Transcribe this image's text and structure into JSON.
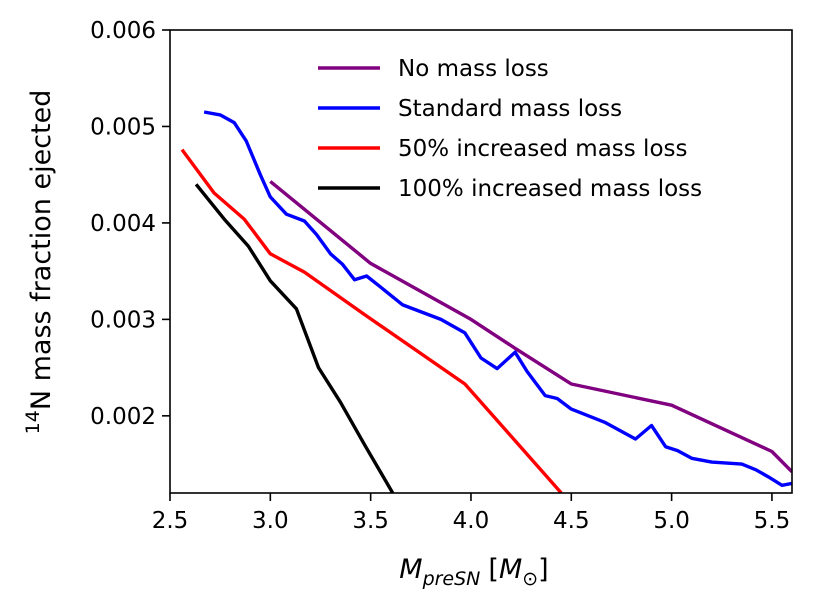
{
  "chart_data": {
    "type": "line",
    "title": "",
    "xlabel_parts": {
      "main": "M",
      "sub": "preSN",
      "bracket_open": "[",
      "unit_main": "M",
      "unit_sub": "⊙",
      "bracket_close": "]"
    },
    "ylabel_parts": {
      "sup": "14",
      "main": "N mass fraction ejected"
    },
    "xlim": [
      2.5,
      5.6
    ],
    "ylim": [
      0.0012,
      0.006
    ],
    "xticks": [
      2.5,
      3.0,
      3.5,
      4.0,
      4.5,
      5.0,
      5.5
    ],
    "xtick_labels": [
      "2.5",
      "3.0",
      "3.5",
      "4.0",
      "4.5",
      "5.0",
      "5.5"
    ],
    "yticks": [
      0.002,
      0.003,
      0.004,
      0.005,
      0.006
    ],
    "ytick_labels": [
      "0.002",
      "0.003",
      "0.004",
      "0.005",
      "0.006"
    ],
    "grid": false,
    "legend_position": "top-right",
    "series": [
      {
        "name": "No mass loss",
        "color": "#800080",
        "x": [
          3.0,
          3.5,
          4.0,
          4.22,
          4.5,
          5.0,
          5.5,
          5.6
        ],
        "y": [
          0.00443,
          0.00358,
          0.003,
          0.0027,
          0.00233,
          0.00211,
          0.00163,
          0.00142
        ]
      },
      {
        "name": "Standard mass loss",
        "color": "#0000ff",
        "x": [
          2.67,
          2.75,
          2.82,
          2.88,
          2.95,
          3.0,
          3.08,
          3.17,
          3.23,
          3.3,
          3.36,
          3.42,
          3.48,
          3.54,
          3.66,
          3.85,
          3.97,
          4.05,
          4.13,
          4.22,
          4.28,
          4.37,
          4.43,
          4.5,
          4.67,
          4.82,
          4.9,
          4.97,
          5.03,
          5.1,
          5.2,
          5.35,
          5.42,
          5.48,
          5.55,
          5.6
        ],
        "y": [
          0.00515,
          0.00512,
          0.00504,
          0.00485,
          0.0045,
          0.00427,
          0.00409,
          0.00402,
          0.00388,
          0.00368,
          0.00357,
          0.00341,
          0.00345,
          0.00335,
          0.00315,
          0.003,
          0.00286,
          0.0026,
          0.00249,
          0.00266,
          0.00246,
          0.00221,
          0.00218,
          0.00207,
          0.00193,
          0.00176,
          0.0019,
          0.00168,
          0.00164,
          0.00156,
          0.00152,
          0.0015,
          0.00144,
          0.00137,
          0.00128,
          0.0013
        ]
      },
      {
        "name": "50% increased mass loss",
        "color": "#ff0000",
        "x": [
          2.56,
          2.72,
          2.87,
          3.0,
          3.17,
          3.47,
          3.97,
          4.45
        ],
        "y": [
          0.00476,
          0.00431,
          0.00404,
          0.00368,
          0.00349,
          0.00305,
          0.00233,
          0.0012
        ]
      },
      {
        "name": "100% increased mass loss",
        "color": "#000000",
        "x": [
          2.63,
          2.77,
          2.89,
          3.0,
          3.13,
          3.24,
          3.35,
          3.47,
          3.61
        ],
        "y": [
          0.0044,
          0.00404,
          0.00376,
          0.0034,
          0.00311,
          0.0025,
          0.00214,
          0.0017,
          0.0012
        ]
      }
    ]
  }
}
